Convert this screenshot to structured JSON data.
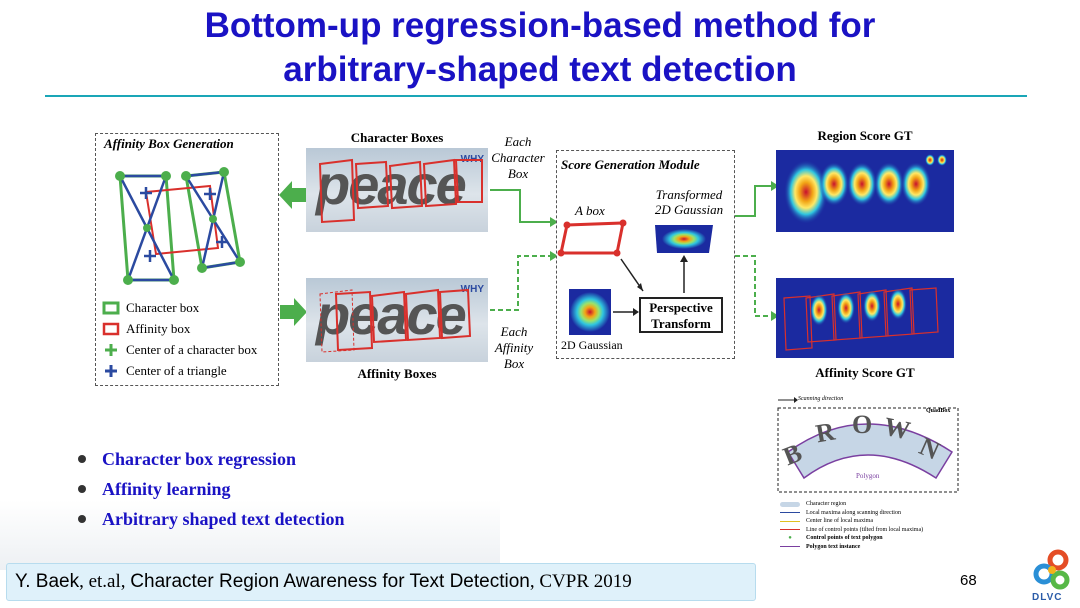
{
  "slide": {
    "title_line1": "Bottom-up regression-based method for",
    "title_line2": "arbitrary-shaped text detection",
    "page_number": "68"
  },
  "figure": {
    "affinity_panel_title": "Affinity Box Generation",
    "legend": [
      "Character box",
      "Affinity box",
      "Center of a character box",
      "Center of a triangle"
    ],
    "character_boxes_caption": "Character Boxes",
    "affinity_boxes_caption": "Affinity Boxes",
    "word_text": "peace",
    "watermark": "WHY",
    "each_character_box": [
      "Each",
      "Character",
      "Box"
    ],
    "each_affinity_box": [
      "Each",
      "Affinity",
      "Box"
    ],
    "module_title": "Score Generation Module",
    "a_box_label": "A box",
    "transformed_label_1": "Transformed",
    "transformed_label_2": "2D Gaussian",
    "gaussian_label": "2D Gaussian",
    "perspective_1": "Perspective",
    "perspective_2": "Transform",
    "region_score_caption": "Region Score GT",
    "affinity_score_caption": "Affinity Score GT"
  },
  "brown_figure": {
    "scanning_direction": "Scanning direction",
    "quadbox": "QuadBox",
    "word_letters": [
      "B",
      "R",
      "O",
      "W",
      "N"
    ],
    "polygon_label": "Polygon",
    "legend": [
      "Character region",
      "Local maxima along scanning direction",
      "Center line of local maxima",
      "Line of control points (tilted from local maxima)",
      "Control points of text polygon",
      "Polygon text instance"
    ]
  },
  "bullets": [
    "Character box regression",
    "Affinity learning",
    "Arbitrary shaped text detection"
  ],
  "citation": {
    "author": "Y. Baek",
    "etal": ", et.al, ",
    "paper": "Character Region Awareness for Text Detection",
    "venue": ", CVPR 2019"
  },
  "logo": {
    "text": "DLVC"
  },
  "colors": {
    "title": "#1a12c4",
    "rule": "#1aa6b7",
    "green": "#4cae4c",
    "red": "#d9302c",
    "blue_cross": "#2b4aa0",
    "heatmap_bg": "#1b2aa0"
  }
}
